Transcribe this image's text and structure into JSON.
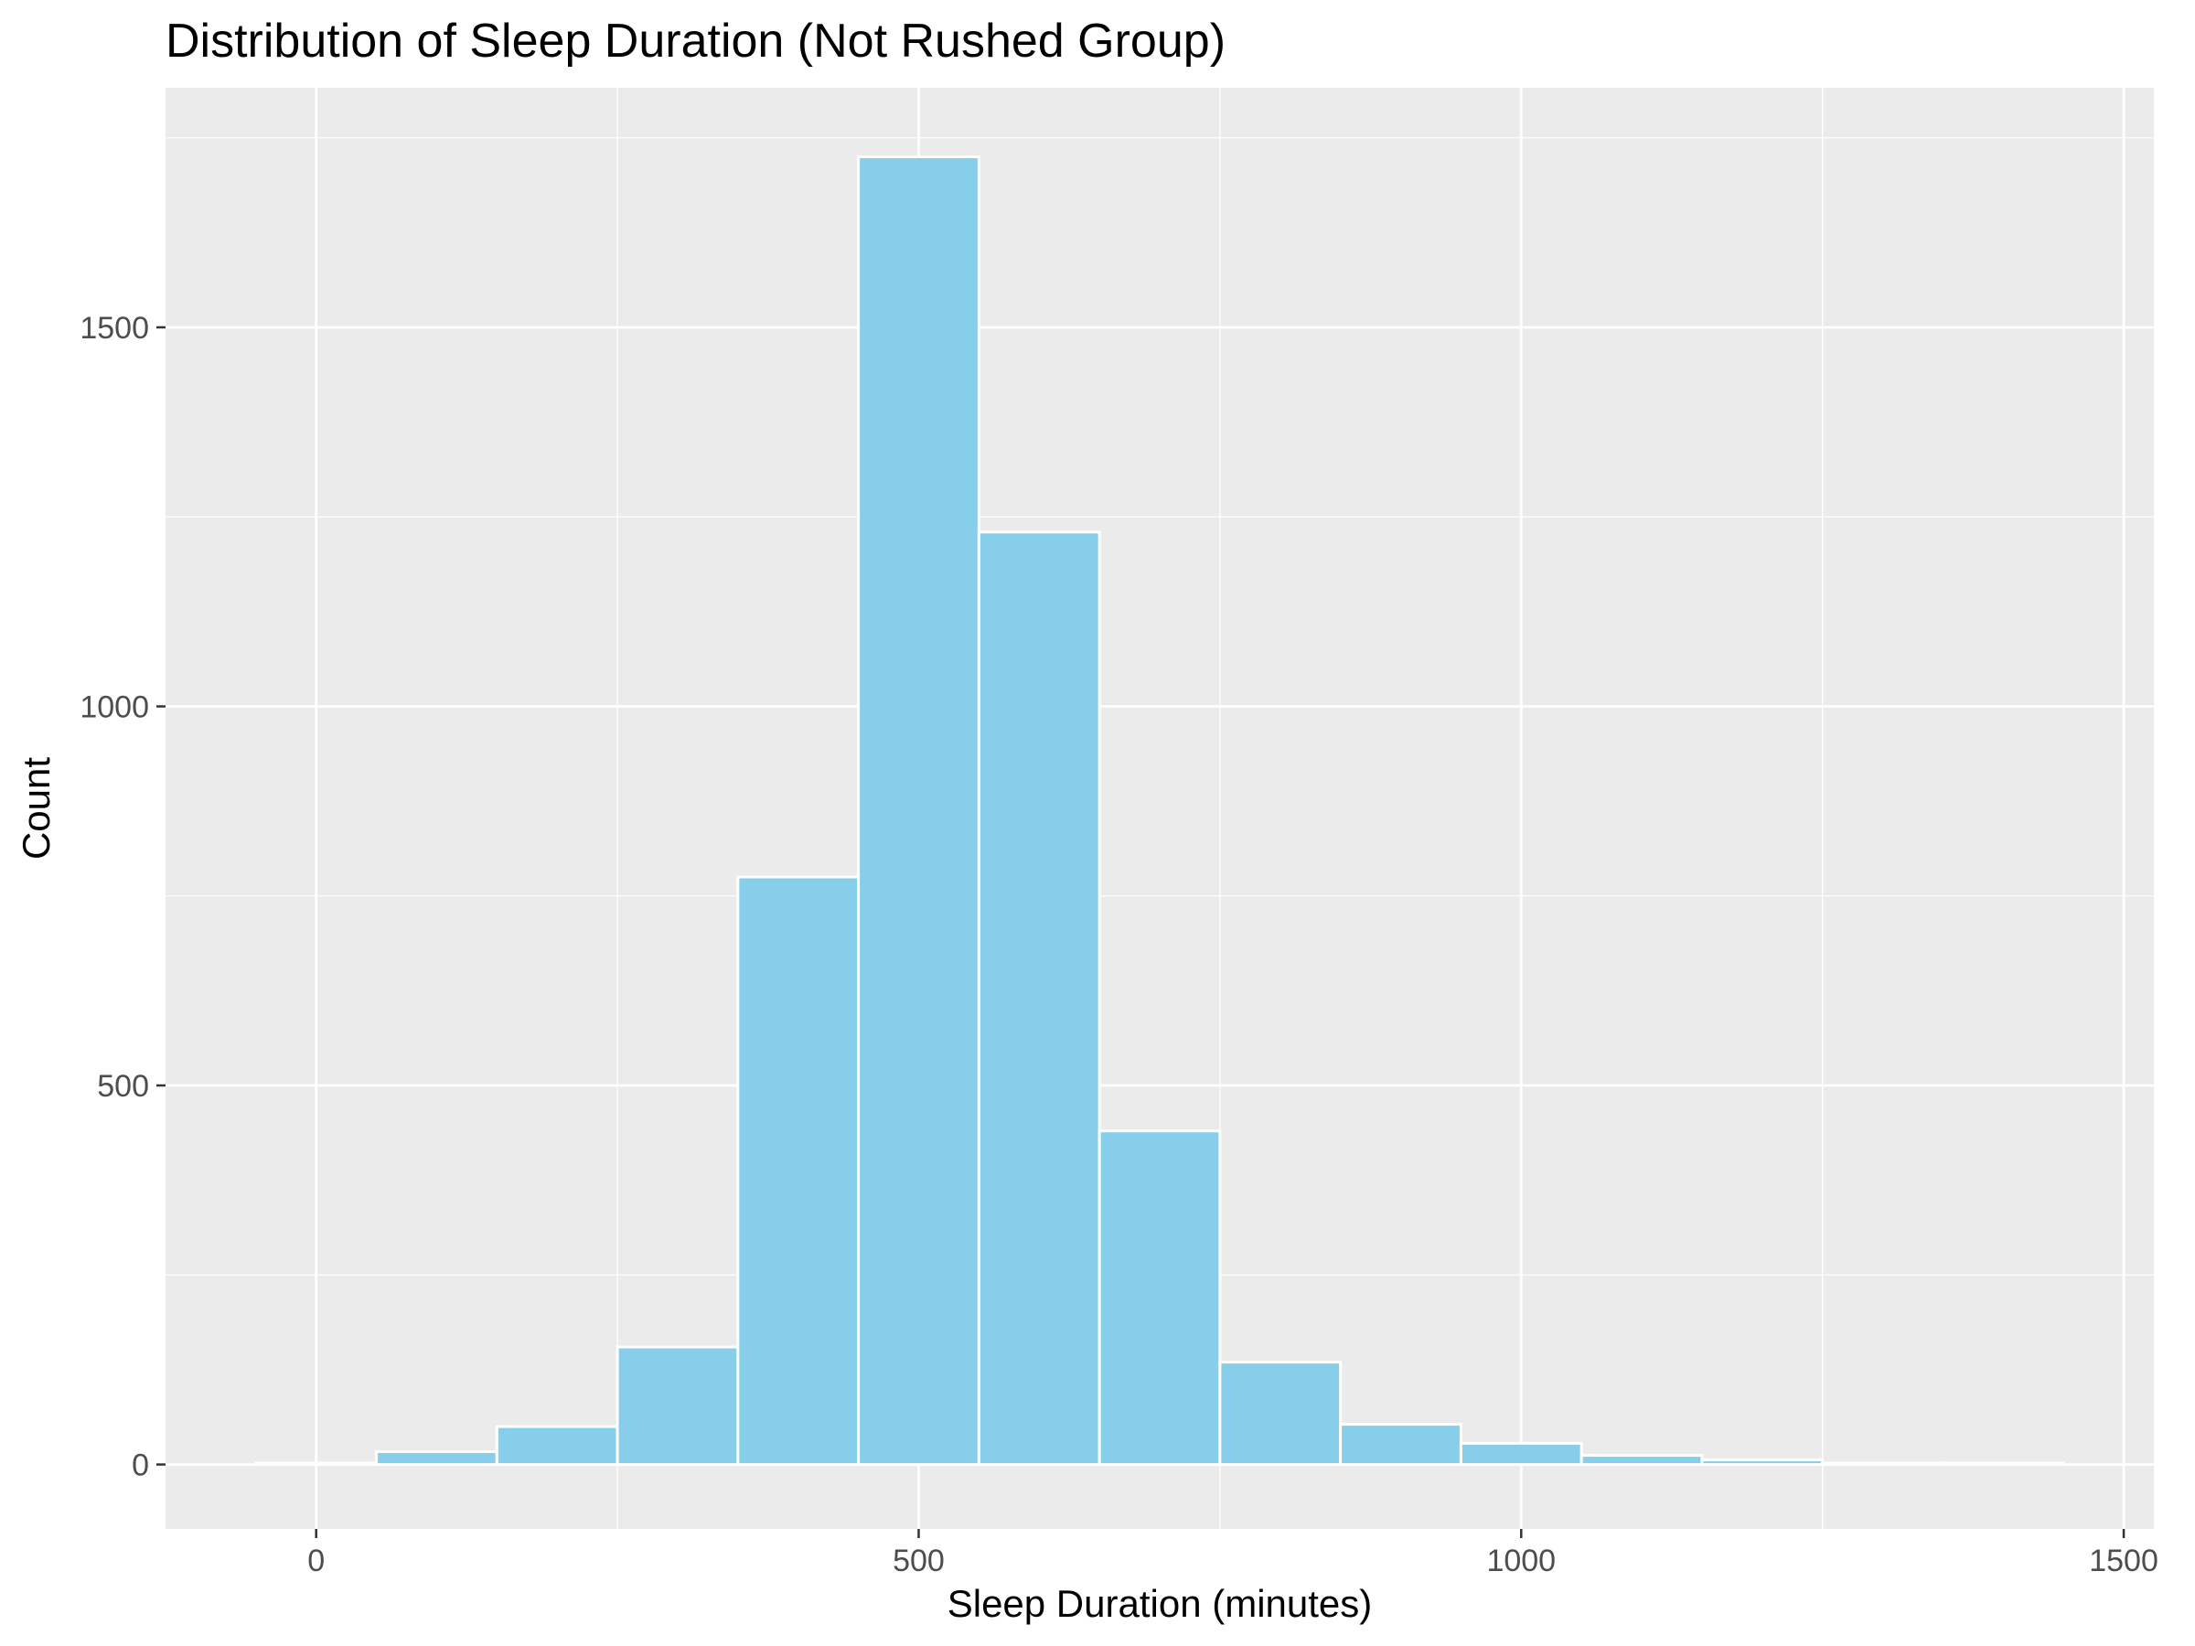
{
  "chart_data": {
    "type": "bar",
    "title": "Distribution of Sleep Duration (Not Rushed Group)",
    "xlabel": "Sleep Duration (minutes)",
    "ylabel": "Count",
    "xlim": [
      -125,
      1525
    ],
    "ylim": [
      -85,
      1816
    ],
    "x_ticks": [
      0,
      500,
      1000,
      1500
    ],
    "y_ticks": [
      0,
      500,
      1000,
      1500
    ],
    "bin_width": 100,
    "bins": [
      {
        "x0": -50,
        "x1": 50,
        "count": 2
      },
      {
        "x0": 50,
        "x1": 150,
        "count": 17
      },
      {
        "x0": 150,
        "x1": 250,
        "count": 50
      },
      {
        "x0": 250,
        "x1": 350,
        "count": 155
      },
      {
        "x0": 350,
        "x1": 450,
        "count": 775
      },
      {
        "x0": 450,
        "x1": 550,
        "count": 1725
      },
      {
        "x0": 550,
        "x1": 650,
        "count": 1230
      },
      {
        "x0": 650,
        "x1": 750,
        "count": 440
      },
      {
        "x0": 750,
        "x1": 850,
        "count": 135
      },
      {
        "x0": 850,
        "x1": 950,
        "count": 53
      },
      {
        "x0": 950,
        "x1": 1050,
        "count": 28
      },
      {
        "x0": 1050,
        "x1": 1150,
        "count": 12
      },
      {
        "x0": 1150,
        "x1": 1250,
        "count": 6
      },
      {
        "x0": 1250,
        "x1": 1350,
        "count": 2
      },
      {
        "x0": 1350,
        "x1": 1450,
        "count": 2
      }
    ],
    "grid": true,
    "colors": {
      "fill": "#87CEEB",
      "bar_border": "#ffffff",
      "panel_background": "#EBEBEB",
      "grid": "#ffffff"
    }
  }
}
